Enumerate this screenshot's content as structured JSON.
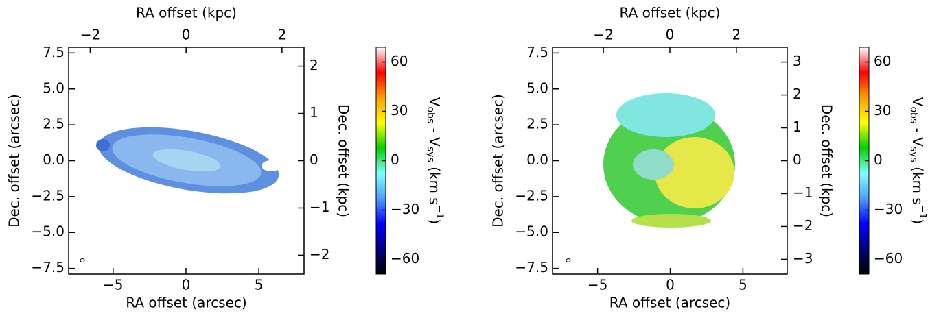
{
  "chart_data": [
    {
      "type": "image",
      "xlabel": "RA offset (arcsec)",
      "ylabel": "Dec. offset (arcsec)",
      "x2label": "RA offset (kpc)",
      "y2label": "Dec. offset (kpc)",
      "xlim": [
        -8.05,
        8.1
      ],
      "xticks": [
        {
          "value": -5,
          "label": "−5"
        },
        0,
        5
      ],
      "ylim": [
        -7.9,
        7.9
      ],
      "yticks": [
        {
          "value": -7.5,
          "label": "−7.5"
        },
        {
          "value": -5,
          "label": "−5.0"
        },
        {
          "value": -2.5,
          "label": "−2.5"
        },
        {
          "value": 0,
          "label": "0.0"
        },
        2.5,
        {
          "value": 5,
          "label": "5.0"
        },
        7.5
      ],
      "x2lim": [
        -2.45,
        2.46
      ],
      "x2ticks": [
        {
          "value": -2,
          "label": "−2"
        },
        0,
        2
      ],
      "y2lim": [
        -2.4,
        2.4
      ],
      "y2ticks": [
        {
          "value": -2,
          "label": "−2"
        },
        {
          "value": -1,
          "label": "−1"
        },
        0,
        1,
        2
      ],
      "colorbar": {
        "clim": [
          -69,
          69
        ],
        "ticks": [
          {
            "value": -60,
            "label": "−60"
          },
          {
            "value": -30,
            "label": "−30"
          },
          0,
          30,
          60
        ],
        "label": [
          "V",
          "obs",
          " - V",
          "sys",
          " (km s",
          "−1",
          ")"
        ],
        "colormap": [
          "#000000",
          "#00007f",
          "#0000ff",
          "#4f9fff",
          "#7fffff",
          "#00d000",
          "#ffff00",
          "#ff9f00",
          "#ff0000",
          "#ffffff"
        ]
      }
    },
    {
      "type": "image",
      "xlabel": "RA offset (arcsec)",
      "ylabel": "Dec. offset (arcsec)",
      "x2label": "RA offset (kpc)",
      "y2label": "Dec. offset (kpc)",
      "xlim": [
        -8.1,
        8.05
      ],
      "xticks": [
        {
          "value": -5,
          "label": "−5"
        },
        0,
        5
      ],
      "ylim": [
        -7.9,
        7.9
      ],
      "yticks": [
        {
          "value": -7.5,
          "label": "−7.5"
        },
        {
          "value": -5,
          "label": "−5.0"
        },
        {
          "value": -2.5,
          "label": "−2.5"
        },
        {
          "value": 0,
          "label": "0.0"
        },
        2.5,
        {
          "value": 5,
          "label": "5.0"
        },
        7.5
      ],
      "x2lim": [
        -3.53,
        3.53
      ],
      "x2ticks": [
        {
          "value": -2,
          "label": "−2"
        },
        0,
        2
      ],
      "y2lim": [
        -3.45,
        3.45
      ],
      "y2ticks": [
        {
          "value": -3,
          "label": "−3"
        },
        {
          "value": -2,
          "label": "−2"
        },
        {
          "value": -1,
          "label": "−1"
        },
        0,
        1,
        2,
        3
      ],
      "colorbar": {
        "clim": [
          -69,
          69
        ],
        "ticks": [
          {
            "value": -60,
            "label": "−60"
          },
          {
            "value": -30,
            "label": "−30"
          },
          0,
          30,
          60
        ],
        "label": [
          "V",
          "obs",
          " - V",
          "sys",
          " (km s",
          "−1",
          ")"
        ],
        "colormap": [
          "#000000",
          "#00007f",
          "#0000ff",
          "#4f9fff",
          "#7fffff",
          "#00d000",
          "#ffff00",
          "#ff9f00",
          "#ff0000",
          "#ffffff"
        ]
      }
    }
  ]
}
